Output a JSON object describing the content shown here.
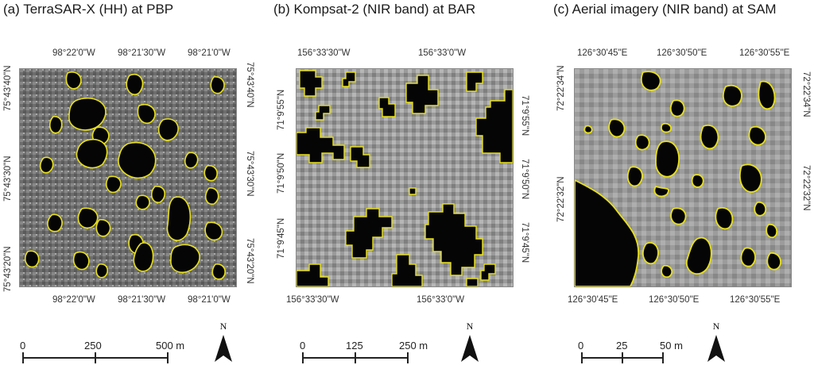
{
  "panels": [
    {
      "title": "(a) TerraSAR-X (HH) at PBP",
      "top_lon": [
        "98°22'0\"W",
        "98°21'30\"W",
        "98°21'0\"W"
      ],
      "bottom_lon": [
        "98°22'0\"W",
        "98°21'30\"W",
        "98°21'0\"W"
      ],
      "left_lat": [
        "75°43'40\"N",
        "75°43'30\"N",
        "75°43'20\"N"
      ],
      "right_lat": [
        "75°43'40\"N",
        "75°43'30\"N",
        "75°43'20\"N"
      ],
      "scale_labels": [
        "0",
        "250",
        "500 m"
      ],
      "north_label": "N"
    },
    {
      "title": "(b) Kompsat-2 (NIR band) at BAR",
      "top_lon": [
        "156°33'30\"W",
        "156°33'0\"W"
      ],
      "bottom_lon": [
        "156°33'30\"W",
        "156°33'0\"W"
      ],
      "left_lat": [
        "71°9'55\"N",
        "71°9'50\"N",
        "71°9'45\"N"
      ],
      "right_lat": [
        "71°9'55\"N",
        "71°9'50\"N",
        "71°9'45\"N"
      ],
      "scale_labels": [
        "0",
        "125",
        "250 m"
      ],
      "north_label": "N"
    },
    {
      "title": "(c) Aerial imagery (NIR band) at SAM",
      "top_lon": [
        "126°30'45\"E",
        "126°30'50\"E",
        "126°30'55\"E"
      ],
      "bottom_lon": [
        "126°30'45\"E",
        "126°30'50\"E",
        "126°30'55\"E"
      ],
      "left_lat": [
        "72°22'34\"N",
        "72°22'32\"N"
      ],
      "right_lat": [
        "72°22'34\"N",
        "72°22'32\"N"
      ],
      "scale_labels": [
        "0",
        "25",
        "50 m"
      ],
      "north_label": "N"
    }
  ],
  "colors": {
    "outline": "#e8e01a",
    "water": "#050505",
    "frame": "#888888"
  }
}
